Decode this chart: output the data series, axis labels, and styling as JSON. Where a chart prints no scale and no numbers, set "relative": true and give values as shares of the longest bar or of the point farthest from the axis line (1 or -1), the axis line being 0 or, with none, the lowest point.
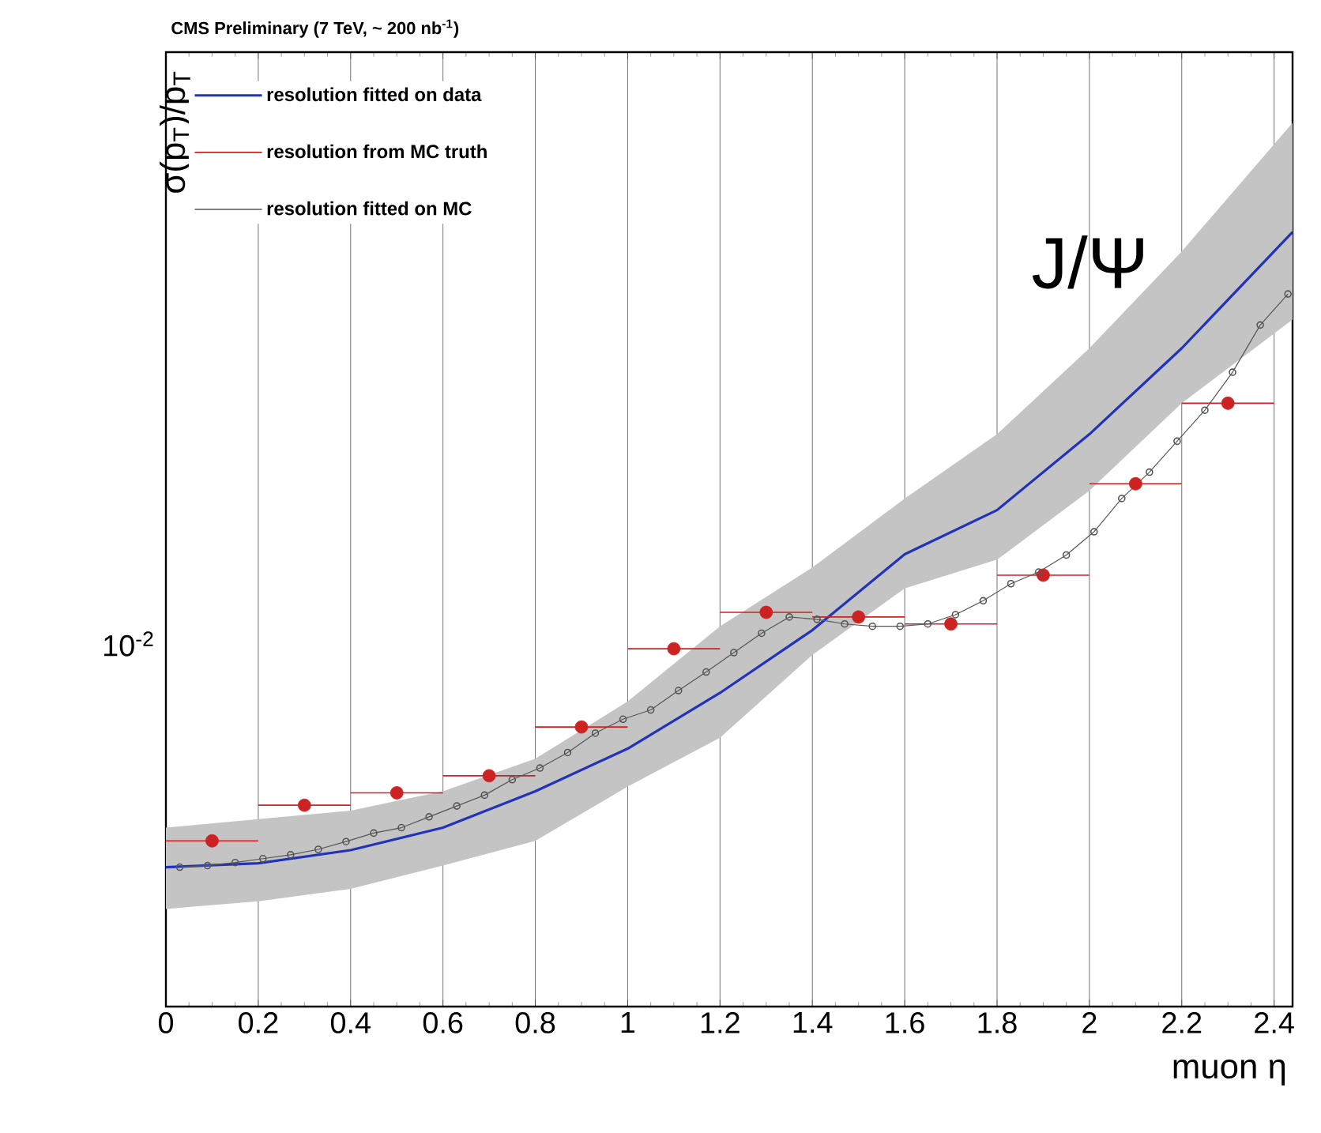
{
  "chart_data": {
    "type": "line",
    "title": "CMS Preliminary (7 TeV, ~ 200 nb$^{-1}$)",
    "xlabel": "muon η",
    "ylabel": "σ(p$_{T}$)/p$_{T}$",
    "annotations": [
      "J/Ψ",
      "10$^{-2}$"
    ],
    "relative": true,
    "grid": "x",
    "legend": "top left",
    "xlim": [
      0,
      2.44
    ],
    "xticks": [
      0,
      0.2,
      0.4,
      0.6,
      0.8,
      1,
      1.2,
      1.4,
      1.6,
      1.8,
      2,
      2.2,
      2.4
    ],
    "series": [
      {
        "name": "resolution fitted on data",
        "color": "#2233bb",
        "marker": "none",
        "x": [
          0,
          0.2,
          0.4,
          0.6,
          0.8,
          1.0,
          1.2,
          1.4,
          1.6,
          1.8,
          2.0,
          2.2,
          2.44
        ],
        "values": [
          0.18,
          0.185,
          0.202,
          0.231,
          0.278,
          0.333,
          0.405,
          0.486,
          0.584,
          0.641,
          0.739,
          0.85,
          1
        ],
        "lower": [
          0.126,
          0.136,
          0.152,
          0.182,
          0.214,
          0.284,
          0.347,
          0.454,
          0.54,
          0.577,
          0.666,
          0.779,
          0.887
        ],
        "upper": [
          0.231,
          0.242,
          0.253,
          0.278,
          0.32,
          0.394,
          0.491,
          0.567,
          0.656,
          0.739,
          0.85,
          0.975,
          1.141
        ]
      },
      {
        "name": "resolution from MC truth",
        "type": "scatter",
        "color": "#cc2222",
        "marker": "circle",
        "x": [
          0.1,
          0.3,
          0.5,
          0.7,
          0.9,
          1.1,
          1.3,
          1.5,
          1.7,
          1.9,
          2.1,
          2.3
        ],
        "values": [
          0.214,
          0.26,
          0.276,
          0.298,
          0.361,
          0.462,
          0.509,
          0.503,
          0.494,
          0.557,
          0.675,
          0.779
        ],
        "xerrors": [
          0.1,
          0.1,
          0.1,
          0.1,
          0.1,
          0.1,
          0.1,
          0.1,
          0.1,
          0.1,
          0.1,
          0.1
        ]
      },
      {
        "name": "resolution fitted on MC",
        "color": "#555555",
        "marker": "circle",
        "x": [
          0.03,
          0.09,
          0.15,
          0.21,
          0.27,
          0.33,
          0.39,
          0.45,
          0.51,
          0.57,
          0.63,
          0.69,
          0.75,
          0.81,
          0.87,
          0.93,
          0.99,
          1.05,
          1.11,
          1.17,
          1.23,
          1.29,
          1.35,
          1.41,
          1.47,
          1.53,
          1.59,
          1.65,
          1.71,
          1.77,
          1.83,
          1.89,
          1.95,
          2.01,
          2.07,
          2.13,
          2.19,
          2.25,
          2.31,
          2.37,
          2.43
        ],
        "values": [
          0.18,
          0.182,
          0.186,
          0.191,
          0.196,
          0.203,
          0.213,
          0.224,
          0.231,
          0.245,
          0.259,
          0.273,
          0.293,
          0.308,
          0.328,
          0.353,
          0.371,
          0.383,
          0.408,
          0.432,
          0.457,
          0.482,
          0.503,
          0.5,
          0.494,
          0.491,
          0.491,
          0.494,
          0.506,
          0.524,
          0.546,
          0.561,
          0.583,
          0.613,
          0.656,
          0.69,
          0.73,
          0.77,
          0.819,
          0.88,
          0.92
        ]
      }
    ]
  }
}
